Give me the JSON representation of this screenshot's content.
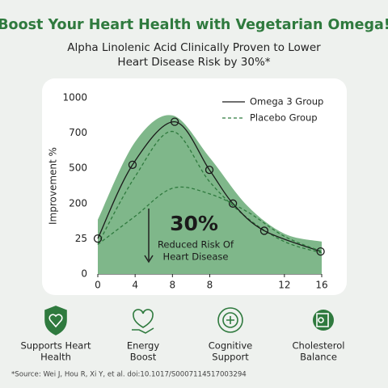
{
  "header": {
    "title": "Boost Your Heart Health with Vegetarian Omega!",
    "subtitle": [
      "Alpha Linolenic Acid Clinically Proven to Lower",
      "Heart Disease Risk by 30%*"
    ]
  },
  "chart_data": {
    "type": "line",
    "ylabel": "Improvement %",
    "x": [
      0,
      0.93,
      2.06,
      2.99,
      3.62,
      4.46,
      5.97
    ],
    "xlim": [
      0,
      6
    ],
    "xticks": [
      {
        "value": 0,
        "label": "0"
      },
      {
        "value": 1,
        "label": "4"
      },
      {
        "value": 2,
        "label": "8"
      },
      {
        "value": 3,
        "label": "8"
      },
      {
        "value": 5,
        "label": "12"
      },
      {
        "value": 6,
        "label": "16"
      }
    ],
    "ylim": [
      0,
      1000
    ],
    "yticks": [
      0,
      25,
      200,
      500,
      700,
      1000
    ],
    "series": [
      {
        "color": "#7fb78a",
        "style": "area",
        "x": [
          0,
          1,
          2,
          3,
          4,
          5,
          6
        ],
        "values": [
          120,
          650,
          850,
          560,
          190,
          50,
          23
        ]
      },
      {
        "color": "#2f7a3e",
        "style": "dashed",
        "x": [
          0,
          1,
          2,
          3,
          4,
          5,
          6
        ],
        "values": [
          21,
          430,
          714,
          384,
          129,
          23,
          15
        ]
      },
      {
        "name": "Omega 3 Group",
        "color": "#1a1a1a",
        "style": "solid",
        "values": [
          26,
          520,
          796,
          487,
          200,
          65,
          16
        ]
      },
      {
        "name": "Placebo Group",
        "color": "#2f7a3e",
        "style": "dashed",
        "x": [
          0,
          1,
          2,
          3,
          4,
          5,
          6
        ],
        "values": [
          21,
          137,
          330,
          282,
          160,
          37,
          16
        ]
      }
    ],
    "annotation": {
      "value": "30%",
      "text": [
        "Reduced Risk Of",
        "Heart Disease"
      ]
    },
    "legend": "top-right"
  },
  "features": [
    [
      "Supports Heart",
      "Health"
    ],
    [
      "Energy",
      "Boost"
    ],
    [
      "Cognitive",
      "Support"
    ],
    [
      "Cholesterol",
      "Balance"
    ]
  ],
  "source": "*Source: Wei J, Hou R, Xi Y, et al. doi:10.1017/S0007114517003294"
}
